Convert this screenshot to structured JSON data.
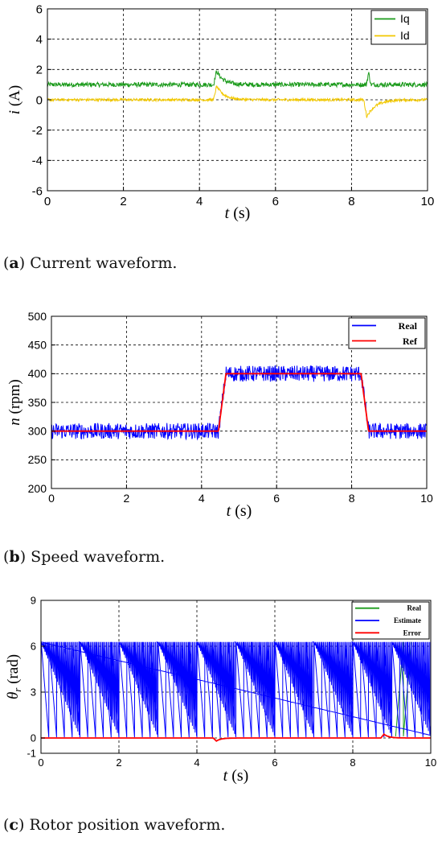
{
  "chart_data": [
    {
      "type": "line",
      "caption": {
        "letter": "a",
        "text": "Current waveform."
      },
      "xlabel_var": "t",
      "xlabel_unit": "(s)",
      "ylabel_var": "i",
      "ylabel_unit": "(A)",
      "xlim": [
        0,
        10
      ],
      "ylim": [
        -6,
        6
      ],
      "xticks": [
        0,
        2,
        4,
        6,
        8,
        10
      ],
      "yticks": [
        -6,
        -4,
        -2,
        0,
        2,
        4,
        6
      ],
      "grid": true,
      "legend_position": "top-right",
      "series": [
        {
          "name": "Iq",
          "color": "#1a9a1a",
          "base": 1.0,
          "noise": 0.3,
          "events": [
            {
              "t": 4.45,
              "shape": "bump",
              "value": 0.9,
              "width": 0.45
            },
            {
              "t": 8.45,
              "shape": "spike",
              "value": 0.8,
              "width": 0.06
            }
          ]
        },
        {
          "name": "Id",
          "color": "#f2c800",
          "base": 0.0,
          "noise": 0.18,
          "events": [
            {
              "t": 4.45,
              "shape": "bump",
              "value": 0.9,
              "width": 0.5
            },
            {
              "t": 8.4,
              "shape": "dip",
              "value": -1.1,
              "width": 0.6
            }
          ]
        }
      ]
    },
    {
      "type": "line",
      "caption": {
        "letter": "b",
        "text": "Speed waveform."
      },
      "xlabel_var": "t",
      "xlabel_unit": "(s)",
      "ylabel_var": "n",
      "ylabel_unit": "(rpm)",
      "xlim": [
        0,
        10
      ],
      "ylim": [
        200,
        500
      ],
      "xticks": [
        0,
        2,
        4,
        6,
        8,
        10
      ],
      "yticks": [
        200,
        250,
        300,
        350,
        400,
        450,
        500
      ],
      "grid": true,
      "legend_position": "top-right",
      "series": [
        {
          "name": "Real",
          "color": "#0000ff",
          "points": [
            [
              0,
              300
            ],
            [
              4.45,
              300
            ],
            [
              4.65,
              400
            ],
            [
              8.25,
              400
            ],
            [
              8.45,
              300
            ],
            [
              10,
              300
            ]
          ],
          "noise": 28
        },
        {
          "name": "Ref",
          "color": "#ff0000",
          "points": [
            [
              0,
              300
            ],
            [
              4.45,
              300
            ],
            [
              4.65,
              400
            ],
            [
              8.25,
              400
            ],
            [
              8.45,
              300
            ],
            [
              10,
              300
            ]
          ]
        }
      ]
    },
    {
      "type": "line",
      "caption": {
        "letter": "c",
        "text": "Rotor position waveform."
      },
      "xlabel_var": "t",
      "xlabel_unit": "(s)",
      "ylabel_var": "θ",
      "ylabel_sub": "r",
      "ylabel_unit": "(rad)",
      "xlim": [
        0,
        10
      ],
      "ylim": [
        -1,
        9
      ],
      "xticks": [
        0,
        2,
        4,
        6,
        8,
        10
      ],
      "yticks": [
        -1,
        0,
        3,
        6,
        9
      ],
      "grid": true,
      "legend_position": "top-right",
      "series": [
        {
          "name": "Real",
          "color": "#1a9a1a",
          "sawtooth_max": 6.28,
          "period": 0.2
        },
        {
          "name": "Estimate",
          "color": "#0000ff",
          "sawtooth_max": 6.28,
          "period": 0.2
        },
        {
          "name": "Error",
          "color": "#ff0000",
          "base": 0.0,
          "events": [
            {
              "t": 4.5,
              "shape": "dip",
              "value": -0.2,
              "width": 0.3
            },
            {
              "t": 8.8,
              "shape": "bump",
              "value": 0.25,
              "width": 0.3
            }
          ]
        }
      ]
    }
  ]
}
